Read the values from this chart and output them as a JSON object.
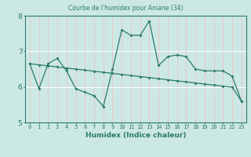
{
  "title": "Courbe de l'humidex pour Aniane (34)",
  "xlabel": "Humidex (Indice chaleur)",
  "xlim": [
    -0.5,
    23.5
  ],
  "ylim": [
    5,
    8
  ],
  "yticks": [
    5,
    6,
    7,
    8
  ],
  "xticks": [
    0,
    1,
    2,
    3,
    4,
    5,
    6,
    7,
    8,
    9,
    10,
    11,
    12,
    13,
    14,
    15,
    16,
    17,
    18,
    19,
    20,
    21,
    22,
    23
  ],
  "bg_color": "#cce8e4",
  "line_color": "#2a7a6a",
  "grid_color": "#ffffff",
  "series1_y": [
    6.65,
    5.95,
    6.65,
    6.8,
    6.45,
    5.95,
    5.85,
    5.75,
    5.45,
    6.5,
    7.6,
    7.45,
    7.45,
    7.85,
    6.6,
    6.85,
    6.9,
    6.85,
    6.5,
    6.45,
    6.45,
    6.45,
    6.3,
    5.6
  ],
  "series2_y": [
    6.65,
    6.62,
    6.59,
    6.56,
    6.53,
    6.5,
    6.47,
    6.44,
    6.41,
    6.38,
    6.35,
    6.32,
    6.29,
    6.26,
    6.23,
    6.2,
    6.17,
    6.14,
    6.11,
    6.08,
    6.05,
    6.02,
    5.99,
    5.6
  ]
}
